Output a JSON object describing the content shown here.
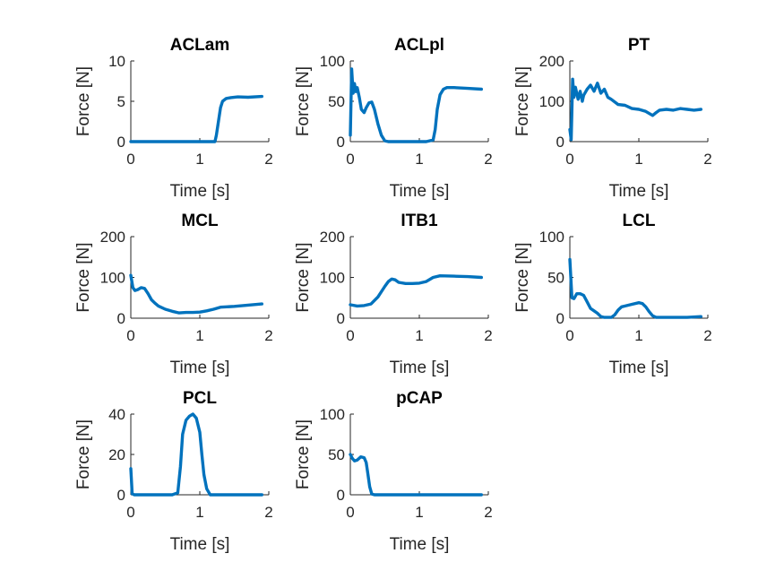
{
  "colors": {
    "series": "#0072BD",
    "axis": "#262626",
    "background": "#ffffff"
  },
  "chart_data": [
    {
      "type": "line",
      "title": "ACLam",
      "xlabel": "Time [s]",
      "ylabel": "Force [N]",
      "xlim": [
        0,
        2
      ],
      "ylim": [
        0,
        10
      ],
      "xticks": [
        0,
        1,
        2
      ],
      "yticks": [
        0,
        5,
        10
      ],
      "grid": false,
      "series": [
        {
          "x": [
            0,
            0.5,
            1.0,
            1.22,
            1.24,
            1.27,
            1.3,
            1.33,
            1.38,
            1.45,
            1.55,
            1.7,
            1.9
          ],
          "y": [
            0,
            0,
            0,
            0,
            0.8,
            2.5,
            4.2,
            5.0,
            5.35,
            5.45,
            5.55,
            5.5,
            5.6
          ]
        }
      ]
    },
    {
      "type": "line",
      "title": "ACLpl",
      "xlabel": "Time [s]",
      "ylabel": "Force [N]",
      "xlim": [
        0,
        2
      ],
      "ylim": [
        0,
        100
      ],
      "xticks": [
        0,
        1,
        2
      ],
      "yticks": [
        0,
        50,
        100
      ],
      "grid": false,
      "series": [
        {
          "x": [
            0,
            0.02,
            0.04,
            0.06,
            0.08,
            0.1,
            0.13,
            0.16,
            0.2,
            0.23,
            0.27,
            0.31,
            0.35,
            0.4,
            0.45,
            0.5,
            0.55,
            0.6,
            0.7,
            0.9,
            1.1,
            1.2,
            1.23,
            1.26,
            1.3,
            1.35,
            1.4,
            1.5,
            1.7,
            1.9
          ],
          "y": [
            8,
            90,
            60,
            72,
            62,
            67,
            55,
            40,
            36,
            42,
            48,
            49,
            40,
            22,
            8,
            1,
            0,
            0,
            0,
            0,
            0,
            2,
            15,
            40,
            58,
            65,
            67,
            67,
            66,
            65
          ]
        }
      ]
    },
    {
      "type": "line",
      "title": "PT",
      "xlabel": "Time [s]",
      "ylabel": "Force [N]",
      "xlim": [
        0,
        2
      ],
      "ylim": [
        0,
        200
      ],
      "xticks": [
        0,
        1,
        2
      ],
      "yticks": [
        0,
        100,
        200
      ],
      "grid": false,
      "series": [
        {
          "x": [
            0,
            0.02,
            0.04,
            0.06,
            0.08,
            0.1,
            0.12,
            0.15,
            0.18,
            0.2,
            0.25,
            0.3,
            0.35,
            0.4,
            0.45,
            0.5,
            0.55,
            0.6,
            0.7,
            0.8,
            0.9,
            1.0,
            1.1,
            1.2,
            1.25,
            1.3,
            1.4,
            1.5,
            1.6,
            1.7,
            1.8,
            1.9
          ],
          "y": [
            30,
            5,
            155,
            110,
            135,
            120,
            105,
            125,
            100,
            115,
            130,
            140,
            125,
            145,
            120,
            130,
            110,
            105,
            92,
            90,
            82,
            80,
            75,
            65,
            72,
            78,
            80,
            78,
            82,
            80,
            78,
            80
          ]
        }
      ]
    },
    {
      "type": "line",
      "title": "MCL",
      "xlabel": "Time [s]",
      "ylabel": "Force [N]",
      "xlim": [
        0,
        2
      ],
      "ylim": [
        0,
        200
      ],
      "xticks": [
        0,
        1,
        2
      ],
      "yticks": [
        0,
        100,
        200
      ],
      "grid": false,
      "series": [
        {
          "x": [
            0,
            0.03,
            0.06,
            0.1,
            0.15,
            0.2,
            0.25,
            0.3,
            0.35,
            0.4,
            0.5,
            0.6,
            0.7,
            0.8,
            0.9,
            1.0,
            1.1,
            1.2,
            1.3,
            1.5,
            1.7,
            1.9
          ],
          "y": [
            105,
            75,
            68,
            70,
            75,
            73,
            60,
            45,
            37,
            30,
            22,
            17,
            13,
            14,
            14,
            15,
            18,
            22,
            27,
            29,
            32,
            35
          ]
        }
      ]
    },
    {
      "type": "line",
      "title": "ITB1",
      "xlabel": "Time [s]",
      "ylabel": "Force [N]",
      "xlim": [
        0,
        2
      ],
      "ylim": [
        0,
        200
      ],
      "xticks": [
        0,
        1,
        2
      ],
      "yticks": [
        0,
        100,
        200
      ],
      "grid": false,
      "series": [
        {
          "x": [
            0,
            0.1,
            0.2,
            0.3,
            0.4,
            0.5,
            0.55,
            0.6,
            0.65,
            0.7,
            0.8,
            0.9,
            1.0,
            1.1,
            1.2,
            1.3,
            1.5,
            1.7,
            1.9
          ],
          "y": [
            33,
            30,
            31,
            35,
            52,
            78,
            90,
            96,
            94,
            88,
            85,
            85,
            86,
            90,
            100,
            104,
            103,
            102,
            100
          ]
        }
      ]
    },
    {
      "type": "line",
      "title": "LCL",
      "xlabel": "Time [s]",
      "ylabel": "Force [N]",
      "xlim": [
        0,
        2
      ],
      "ylim": [
        0,
        100
      ],
      "xticks": [
        0,
        1,
        2
      ],
      "yticks": [
        0,
        50,
        100
      ],
      "grid": false,
      "series": [
        {
          "x": [
            0,
            0.03,
            0.06,
            0.1,
            0.15,
            0.2,
            0.25,
            0.3,
            0.35,
            0.4,
            0.45,
            0.5,
            0.55,
            0.6,
            0.65,
            0.7,
            0.75,
            0.8,
            0.9,
            1.0,
            1.05,
            1.1,
            1.15,
            1.2,
            1.25,
            1.3,
            1.5,
            1.7,
            1.9
          ],
          "y": [
            72,
            25,
            24,
            30,
            30,
            28,
            20,
            12,
            9,
            6,
            2,
            1,
            1,
            1,
            4,
            10,
            14,
            15,
            17,
            19,
            18,
            14,
            8,
            3,
            1,
            1,
            1,
            1,
            2
          ]
        }
      ]
    },
    {
      "type": "line",
      "title": "PCL",
      "xlabel": "Time [s]",
      "ylabel": "Force [N]",
      "xlim": [
        0,
        2
      ],
      "ylim": [
        0,
        40
      ],
      "xticks": [
        0,
        1,
        2
      ],
      "yticks": [
        0,
        20,
        40
      ],
      "grid": false,
      "series": [
        {
          "x": [
            0,
            0.02,
            0.05,
            0.3,
            0.6,
            0.68,
            0.72,
            0.75,
            0.8,
            0.85,
            0.9,
            0.95,
            1.0,
            1.03,
            1.06,
            1.1,
            1.15,
            1.3,
            1.6,
            1.9
          ],
          "y": [
            13,
            0.5,
            0,
            0,
            0,
            1,
            14,
            30,
            37,
            39,
            40,
            38,
            31,
            20,
            10,
            3,
            0,
            0,
            0,
            0
          ]
        }
      ]
    },
    {
      "type": "line",
      "title": "pCAP",
      "xlabel": "Time [s]",
      "ylabel": "Force [N]",
      "xlim": [
        0,
        2
      ],
      "ylim": [
        0,
        100
      ],
      "xticks": [
        0,
        1,
        2
      ],
      "yticks": [
        0,
        50,
        100
      ],
      "grid": false,
      "series": [
        {
          "x": [
            0,
            0.03,
            0.06,
            0.1,
            0.15,
            0.2,
            0.23,
            0.25,
            0.28,
            0.31,
            0.35,
            0.5,
            0.8,
            1.2,
            1.6,
            1.9
          ],
          "y": [
            50,
            45,
            42,
            43,
            47,
            46,
            40,
            28,
            10,
            1,
            0,
            0,
            0,
            0,
            0,
            0
          ]
        }
      ]
    }
  ]
}
